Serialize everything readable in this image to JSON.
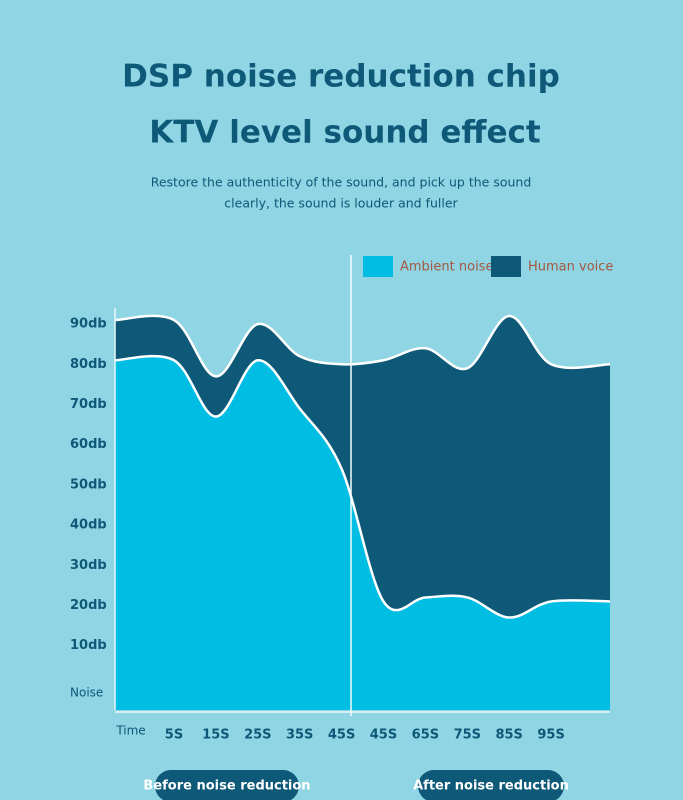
{
  "chart_data": {
    "type": "area",
    "title": "DSP noise reduction chip",
    "subtitle": "KTV level sound effect",
    "description": [
      "Restore the authenticity of the sound, and pick up the sound",
      "clearly, the sound is louder and fuller"
    ],
    "x_label": "Time",
    "categories": [
      "5S",
      "15S",
      "25S",
      "35S",
      "45S",
      "45S",
      "65S",
      "75S",
      "85S",
      "95S"
    ],
    "series": [
      {
        "name": "Ambient noise",
        "color": "#00bde3",
        "values": [
          81,
          67,
          81,
          69,
          54,
          21,
          22,
          22,
          17,
          21
        ]
      },
      {
        "name": "Human voice",
        "color": "#0e5878",
        "values": [
          10,
          10,
          9,
          13,
          26,
          60,
          62,
          57,
          75,
          59
        ]
      }
    ],
    "stacked": true,
    "ylim": [
      -6,
      94
    ],
    "yticks": [
      {
        "value": 0,
        "label": "Noise"
      },
      {
        "value": 10,
        "label": "10db"
      },
      {
        "value": 20,
        "label": "20db"
      },
      {
        "value": 30,
        "label": "30db"
      },
      {
        "value": 40,
        "label": "40db"
      },
      {
        "value": 50,
        "label": "50db"
      },
      {
        "value": 60,
        "label": "60db"
      },
      {
        "value": 70,
        "label": "70db"
      },
      {
        "value": 80,
        "label": "80db"
      },
      {
        "value": 90,
        "label": "90db"
      }
    ],
    "annotations": [
      "Before noise reduction",
      "After noise reduction"
    ]
  }
}
